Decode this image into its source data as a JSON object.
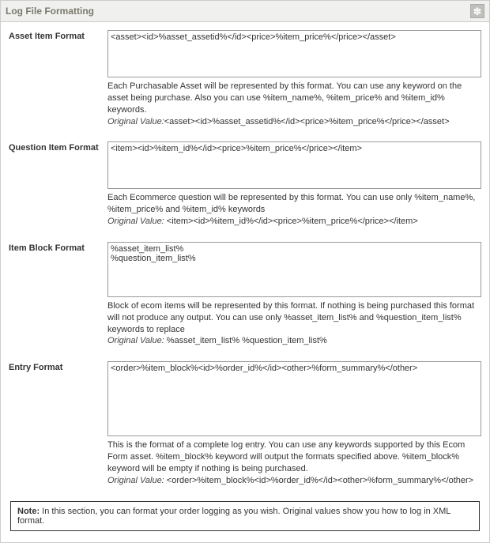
{
  "header": {
    "title": "Log File Formatting",
    "btn_icon": "✽"
  },
  "fields": {
    "asset": {
      "label": "Asset Item Format",
      "value": "<asset><id>%asset_assetid%</id><price>%item_price%</price></asset>",
      "desc": "Each Purchasable Asset will be represented by this format. You can use any keyword on the asset being purchase. Also you can use %item_name%, %item_price% and %item_id% keywords.",
      "orig_label": "Original Value:",
      "orig_value": "<asset><id>%asset_assetid%</id><price>%item_price%</price></asset>"
    },
    "question": {
      "label": "Question Item Format",
      "value": "<item><id>%item_id%</id><price>%item_price%</price></item>",
      "desc": "Each Ecommerce question will be represented by this format. You can use only %item_name%, %item_price% and %item_id% keywords",
      "orig_label": "Original Value:",
      "orig_value": " <item><id>%item_id%</id><price>%item_price%</price></item>"
    },
    "block": {
      "label": "Item Block Format",
      "value": "%asset_item_list%\n%question_item_list%",
      "desc": "Block of ecom items will be represented by this format. If nothing is being purchased this format will not produce any output. You can use only %asset_item_list% and %question_item_list% keywords to replace",
      "orig_label": "Original Value:",
      "orig_value": " %asset_item_list% %question_item_list%"
    },
    "entry": {
      "label": "Entry Format",
      "value": "<order>%item_block%<id>%order_id%</id><other>%form_summary%</other>",
      "desc": "This is the format of a complete log entry. You can use any keywords supported by this Ecom Form asset. %item_block% keyword will output the formats specified above. %item_block% keyword will be empty if nothing is being purchased.",
      "orig_label": "Original Value:",
      "orig_value": " <order>%item_block%<id>%order_id%</id><other>%form_summary%</other>"
    }
  },
  "note": {
    "label": "Note:",
    "text": " In this section, you can format your order logging as you wish. Original values show you how to log in XML format."
  }
}
